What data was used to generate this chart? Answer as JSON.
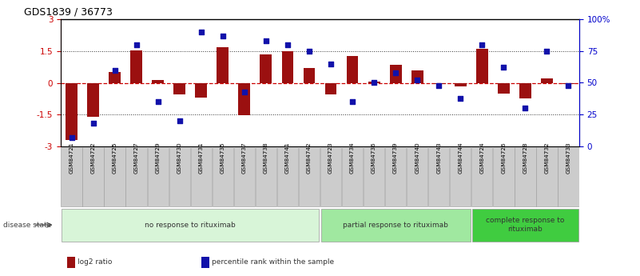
{
  "title": "GDS1839 / 36773",
  "samples": [
    "GSM84721",
    "GSM84722",
    "GSM84725",
    "GSM84727",
    "GSM84729",
    "GSM84730",
    "GSM84731",
    "GSM84735",
    "GSM84737",
    "GSM84738",
    "GSM84741",
    "GSM84742",
    "GSM84723",
    "GSM84734",
    "GSM84736",
    "GSM84739",
    "GSM84740",
    "GSM84743",
    "GSM84744",
    "GSM84724",
    "GSM84726",
    "GSM84728",
    "GSM84732",
    "GSM84733"
  ],
  "log2_ratio": [
    -2.7,
    -1.6,
    0.5,
    1.55,
    0.15,
    -0.55,
    -0.7,
    1.7,
    -1.55,
    1.35,
    1.5,
    0.7,
    -0.55,
    1.25,
    0.05,
    0.85,
    0.6,
    -0.07,
    -0.18,
    1.6,
    -0.5,
    -0.75,
    0.2,
    -0.04
  ],
  "percentile": [
    7,
    18,
    60,
    80,
    35,
    20,
    90,
    87,
    43,
    83,
    80,
    75,
    65,
    35,
    50,
    58,
    52,
    48,
    38,
    80,
    62,
    30,
    75,
    48
  ],
  "bar_color": "#9B1010",
  "dot_color": "#1111AA",
  "ylim_left": [
    -3,
    3
  ],
  "ylim_right": [
    0,
    100
  ],
  "yticks_left": [
    -3,
    -1.5,
    0,
    1.5,
    3
  ],
  "yticks_right": [
    0,
    25,
    50,
    75,
    100
  ],
  "yticklabels_right": [
    "0",
    "25",
    "50",
    "75",
    "100%"
  ],
  "groups": [
    {
      "label": "no response to rituximab",
      "start": 0,
      "end": 12,
      "color": "#d8f5d8"
    },
    {
      "label": "partial response to rituximab",
      "start": 12,
      "end": 19,
      "color": "#a0e8a0"
    },
    {
      "label": "complete response to\nrituximab",
      "start": 19,
      "end": 24,
      "color": "#40cc40"
    }
  ],
  "disease_state_label": "disease state",
  "legend_items": [
    {
      "label": "log2 ratio",
      "color": "#9B1010"
    },
    {
      "label": "percentile rank within the sample",
      "color": "#1111AA"
    }
  ],
  "hline_color": "#cc0000",
  "dotted_line_color": "#333333",
  "bg_color": "#ffffff",
  "bar_width": 0.55,
  "sample_box_color": "#cccccc",
  "sample_box_edge": "#999999"
}
